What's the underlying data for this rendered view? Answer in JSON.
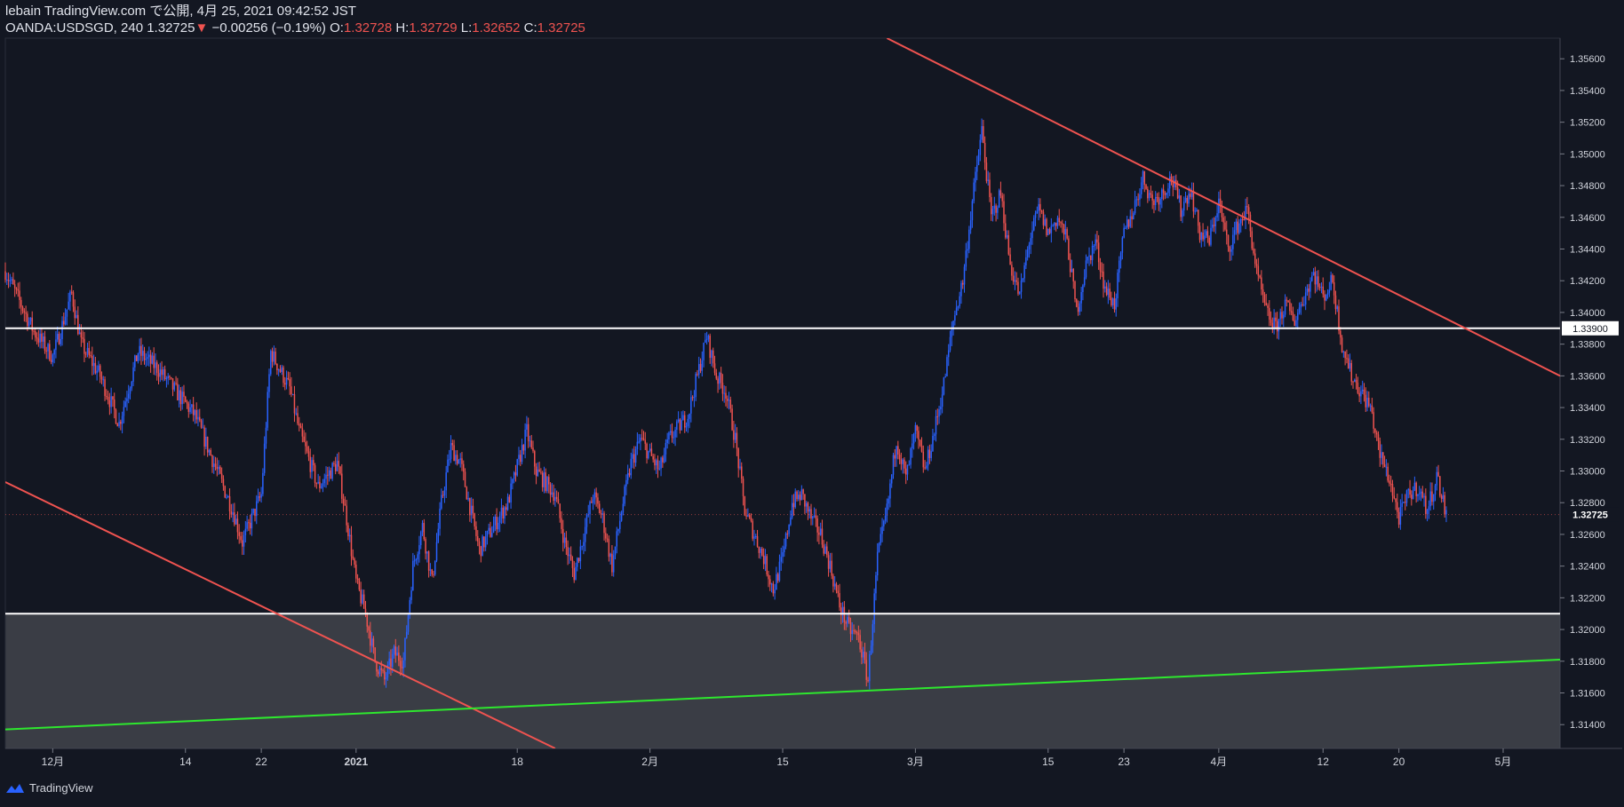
{
  "header": {
    "line1": "lebain TradingView.com で公開, 4月 25, 2021 09:42:52 JST",
    "symbol": "OANDA:USDSGD, 240",
    "last": "1.32725",
    "change_arrow": "▼",
    "change": "−0.00256 (−0.19%)",
    "o_label": "O:",
    "o_value": "1.32728",
    "h_label": "H:",
    "h_value": "1.32729",
    "l_label": "L:",
    "l_value": "1.32652",
    "c_label": "C:",
    "c_value": "1.32725"
  },
  "footer": {
    "brand": "TradingView"
  },
  "colors": {
    "background": "#131722",
    "up": "#2962ff",
    "down": "#ef5350",
    "zone": "#3a3d45",
    "trend_green": "#2ee82e",
    "level": "#ffffff"
  },
  "chart_data": {
    "type": "candlestick",
    "symbol": "OANDA:USDSGD",
    "interval": "240",
    "ylim": [
      1.3125,
      1.3573
    ],
    "y_ticks": [
      "1.35600",
      "1.35400",
      "1.35200",
      "1.35000",
      "1.34800",
      "1.34600",
      "1.34400",
      "1.34200",
      "1.34000",
      "1.33800",
      "1.33600",
      "1.33400",
      "1.33200",
      "1.33000",
      "1.32800",
      "1.32600",
      "1.32400",
      "1.32200",
      "1.32000",
      "1.31800",
      "1.31600",
      "1.31400"
    ],
    "x_ticks": [
      {
        "label": "12月",
        "day": -8
      },
      {
        "label": "14",
        "day": 6
      },
      {
        "label": "22",
        "day": 14
      },
      {
        "label": "2021",
        "day": 24
      },
      {
        "label": "18",
        "day": 41
      },
      {
        "label": "2月",
        "day": 55
      },
      {
        "label": "15",
        "day": 69
      },
      {
        "label": "3月",
        "day": 83
      },
      {
        "label": "15",
        "day": 97
      },
      {
        "label": "23",
        "day": 105
      },
      {
        "label": "4月",
        "day": 115
      },
      {
        "label": "12",
        "day": 126
      },
      {
        "label": "20",
        "day": 134
      },
      {
        "label": "5月",
        "day": 145
      }
    ],
    "x_range_days": [
      -13,
      151
    ],
    "price_path": [
      {
        "day": -13,
        "price": 1.3426
      },
      {
        "day": -10,
        "price": 1.3388
      },
      {
        "day": -8,
        "price": 1.3372
      },
      {
        "day": -6,
        "price": 1.3412
      },
      {
        "day": -5,
        "price": 1.338
      },
      {
        "day": -3,
        "price": 1.336
      },
      {
        "day": -1,
        "price": 1.333
      },
      {
        "day": 1,
        "price": 1.3375
      },
      {
        "day": 3,
        "price": 1.3365
      },
      {
        "day": 5,
        "price": 1.335
      },
      {
        "day": 7,
        "price": 1.3335
      },
      {
        "day": 9,
        "price": 1.3305
      },
      {
        "day": 11,
        "price": 1.3275
      },
      {
        "day": 12,
        "price": 1.3255
      },
      {
        "day": 14,
        "price": 1.3285
      },
      {
        "day": 15,
        "price": 1.3375
      },
      {
        "day": 17,
        "price": 1.3352
      },
      {
        "day": 18,
        "price": 1.3325
      },
      {
        "day": 20,
        "price": 1.329
      },
      {
        "day": 22,
        "price": 1.3305
      },
      {
        "day": 23,
        "price": 1.327
      },
      {
        "day": 24,
        "price": 1.323
      },
      {
        "day": 25,
        "price": 1.321
      },
      {
        "day": 26,
        "price": 1.318
      },
      {
        "day": 27,
        "price": 1.3168
      },
      {
        "day": 28,
        "price": 1.3185
      },
      {
        "day": 29,
        "price": 1.318
      },
      {
        "day": 30,
        "price": 1.324
      },
      {
        "day": 31,
        "price": 1.3265
      },
      {
        "day": 32,
        "price": 1.323
      },
      {
        "day": 33,
        "price": 1.328
      },
      {
        "day": 34,
        "price": 1.3315
      },
      {
        "day": 35,
        "price": 1.3305
      },
      {
        "day": 37,
        "price": 1.325
      },
      {
        "day": 39,
        "price": 1.327
      },
      {
        "day": 40,
        "price": 1.328
      },
      {
        "day": 42,
        "price": 1.3325
      },
      {
        "day": 43,
        "price": 1.33
      },
      {
        "day": 45,
        "price": 1.3285
      },
      {
        "day": 46,
        "price": 1.3255
      },
      {
        "day": 47,
        "price": 1.3235
      },
      {
        "day": 49,
        "price": 1.3285
      },
      {
        "day": 50,
        "price": 1.327
      },
      {
        "day": 51,
        "price": 1.324
      },
      {
        "day": 52,
        "price": 1.3275
      },
      {
        "day": 53,
        "price": 1.3305
      },
      {
        "day": 54,
        "price": 1.332
      },
      {
        "day": 56,
        "price": 1.33
      },
      {
        "day": 57,
        "price": 1.332
      },
      {
        "day": 59,
        "price": 1.3335
      },
      {
        "day": 61,
        "price": 1.3385
      },
      {
        "day": 62,
        "price": 1.336
      },
      {
        "day": 63,
        "price": 1.335
      },
      {
        "day": 64,
        "price": 1.332
      },
      {
        "day": 65,
        "price": 1.3275
      },
      {
        "day": 66,
        "price": 1.326
      },
      {
        "day": 67,
        "price": 1.3245
      },
      {
        "day": 68,
        "price": 1.3225
      },
      {
        "day": 69,
        "price": 1.3245
      },
      {
        "day": 70,
        "price": 1.328
      },
      {
        "day": 71,
        "price": 1.3285
      },
      {
        "day": 72,
        "price": 1.327
      },
      {
        "day": 73,
        "price": 1.326
      },
      {
        "day": 74,
        "price": 1.324
      },
      {
        "day": 75,
        "price": 1.3215
      },
      {
        "day": 76,
        "price": 1.32
      },
      {
        "day": 77,
        "price": 1.3195
      },
      {
        "day": 78,
        "price": 1.3168
      },
      {
        "day": 79,
        "price": 1.3245
      },
      {
        "day": 80,
        "price": 1.3275
      },
      {
        "day": 81,
        "price": 1.332
      },
      {
        "day": 82,
        "price": 1.3295
      },
      {
        "day": 83,
        "price": 1.3325
      },
      {
        "day": 84,
        "price": 1.33
      },
      {
        "day": 85,
        "price": 1.3325
      },
      {
        "day": 86,
        "price": 1.3355
      },
      {
        "day": 87,
        "price": 1.3395
      },
      {
        "day": 88,
        "price": 1.342
      },
      {
        "day": 89,
        "price": 1.347
      },
      {
        "day": 90,
        "price": 1.3515
      },
      {
        "day": 91,
        "price": 1.346
      },
      {
        "day": 92,
        "price": 1.3475
      },
      {
        "day": 93,
        "price": 1.343
      },
      {
        "day": 94,
        "price": 1.341
      },
      {
        "day": 95,
        "price": 1.3445
      },
      {
        "day": 96,
        "price": 1.3465
      },
      {
        "day": 97,
        "price": 1.345
      },
      {
        "day": 98,
        "price": 1.346
      },
      {
        "day": 99,
        "price": 1.3445
      },
      {
        "day": 100,
        "price": 1.34
      },
      {
        "day": 101,
        "price": 1.343
      },
      {
        "day": 102,
        "price": 1.3445
      },
      {
        "day": 103,
        "price": 1.3415
      },
      {
        "day": 104,
        "price": 1.3405
      },
      {
        "day": 105,
        "price": 1.345
      },
      {
        "day": 106,
        "price": 1.3465
      },
      {
        "day": 107,
        "price": 1.3485
      },
      {
        "day": 108,
        "price": 1.347
      },
      {
        "day": 109,
        "price": 1.3475
      },
      {
        "day": 110,
        "price": 1.3485
      },
      {
        "day": 111,
        "price": 1.3465
      },
      {
        "day": 112,
        "price": 1.3478
      },
      {
        "day": 113,
        "price": 1.345
      },
      {
        "day": 114,
        "price": 1.3445
      },
      {
        "day": 115,
        "price": 1.347
      },
      {
        "day": 116,
        "price": 1.344
      },
      {
        "day": 117,
        "price": 1.3455
      },
      {
        "day": 118,
        "price": 1.3465
      },
      {
        "day": 119,
        "price": 1.3425
      },
      {
        "day": 120,
        "price": 1.34
      },
      {
        "day": 121,
        "price": 1.339
      },
      {
        "day": 122,
        "price": 1.3405
      },
      {
        "day": 123,
        "price": 1.3395
      },
      {
        "day": 124,
        "price": 1.341
      },
      {
        "day": 125,
        "price": 1.3425
      },
      {
        "day": 126,
        "price": 1.341
      },
      {
        "day": 127,
        "price": 1.342
      },
      {
        "day": 128,
        "price": 1.338
      },
      {
        "day": 129,
        "price": 1.336
      },
      {
        "day": 130,
        "price": 1.335
      },
      {
        "day": 131,
        "price": 1.334
      },
      {
        "day": 132,
        "price": 1.331
      },
      {
        "day": 133,
        "price": 1.3295
      },
      {
        "day": 134,
        "price": 1.327
      },
      {
        "day": 135,
        "price": 1.3285
      },
      {
        "day": 136,
        "price": 1.329
      },
      {
        "day": 137,
        "price": 1.3275
      },
      {
        "day": 138,
        "price": 1.3297
      },
      {
        "day": 139,
        "price": 1.3272
      }
    ],
    "horizontal_levels": [
      {
        "name": "resistance",
        "price": 1.339,
        "label": "1.33900",
        "color": "#ffffff"
      },
      {
        "name": "support",
        "price": 1.321,
        "color": "#ffffff"
      }
    ],
    "current_price": {
      "price": 1.32725,
      "label": "1.32725"
    },
    "support_zone": {
      "top_price": 1.321,
      "bottom": "chart-bottom",
      "color": "#3a3d45"
    },
    "trendlines": [
      {
        "name": "upper-red-downtrend",
        "color": "#ef5350",
        "points": [
          {
            "day": 80,
            "price": 1.3573
          },
          {
            "day": 151,
            "price": 1.336
          }
        ]
      },
      {
        "name": "lower-red-downtrend",
        "color": "#ef5350",
        "points": [
          {
            "day": -13,
            "price": 1.3293
          },
          {
            "day": 45,
            "price": 1.3125
          }
        ]
      },
      {
        "name": "green-uptrend",
        "color": "#2ee82e",
        "points": [
          {
            "day": -13,
            "price": 1.3137
          },
          {
            "day": 151,
            "price": 1.3181
          }
        ]
      }
    ]
  }
}
